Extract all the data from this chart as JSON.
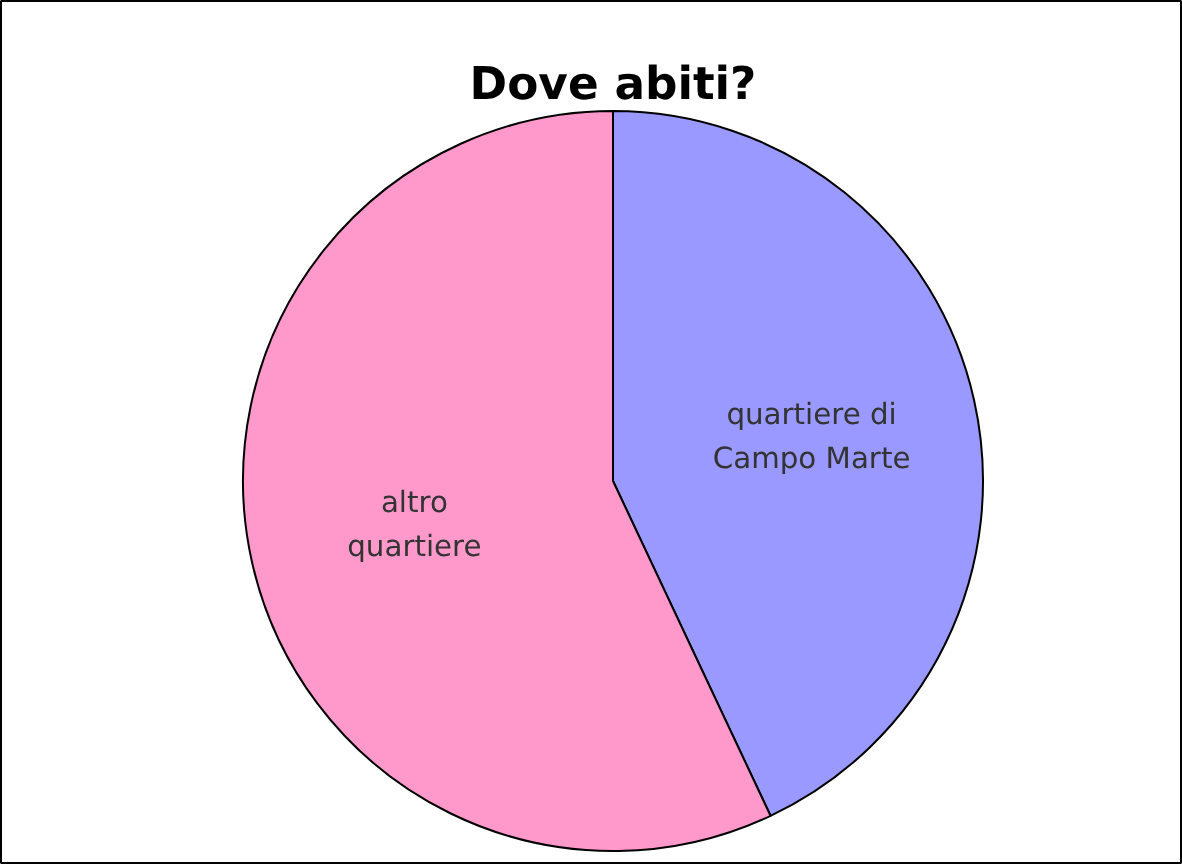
{
  "chart_data": {
    "type": "pie",
    "title": "Dove abiti?",
    "categories": [
      "quartiere di Campo Marte",
      "altro quartiere"
    ],
    "values": [
      43,
      57
    ],
    "colors": [
      "#9999ff",
      "#ff99cc"
    ]
  }
}
